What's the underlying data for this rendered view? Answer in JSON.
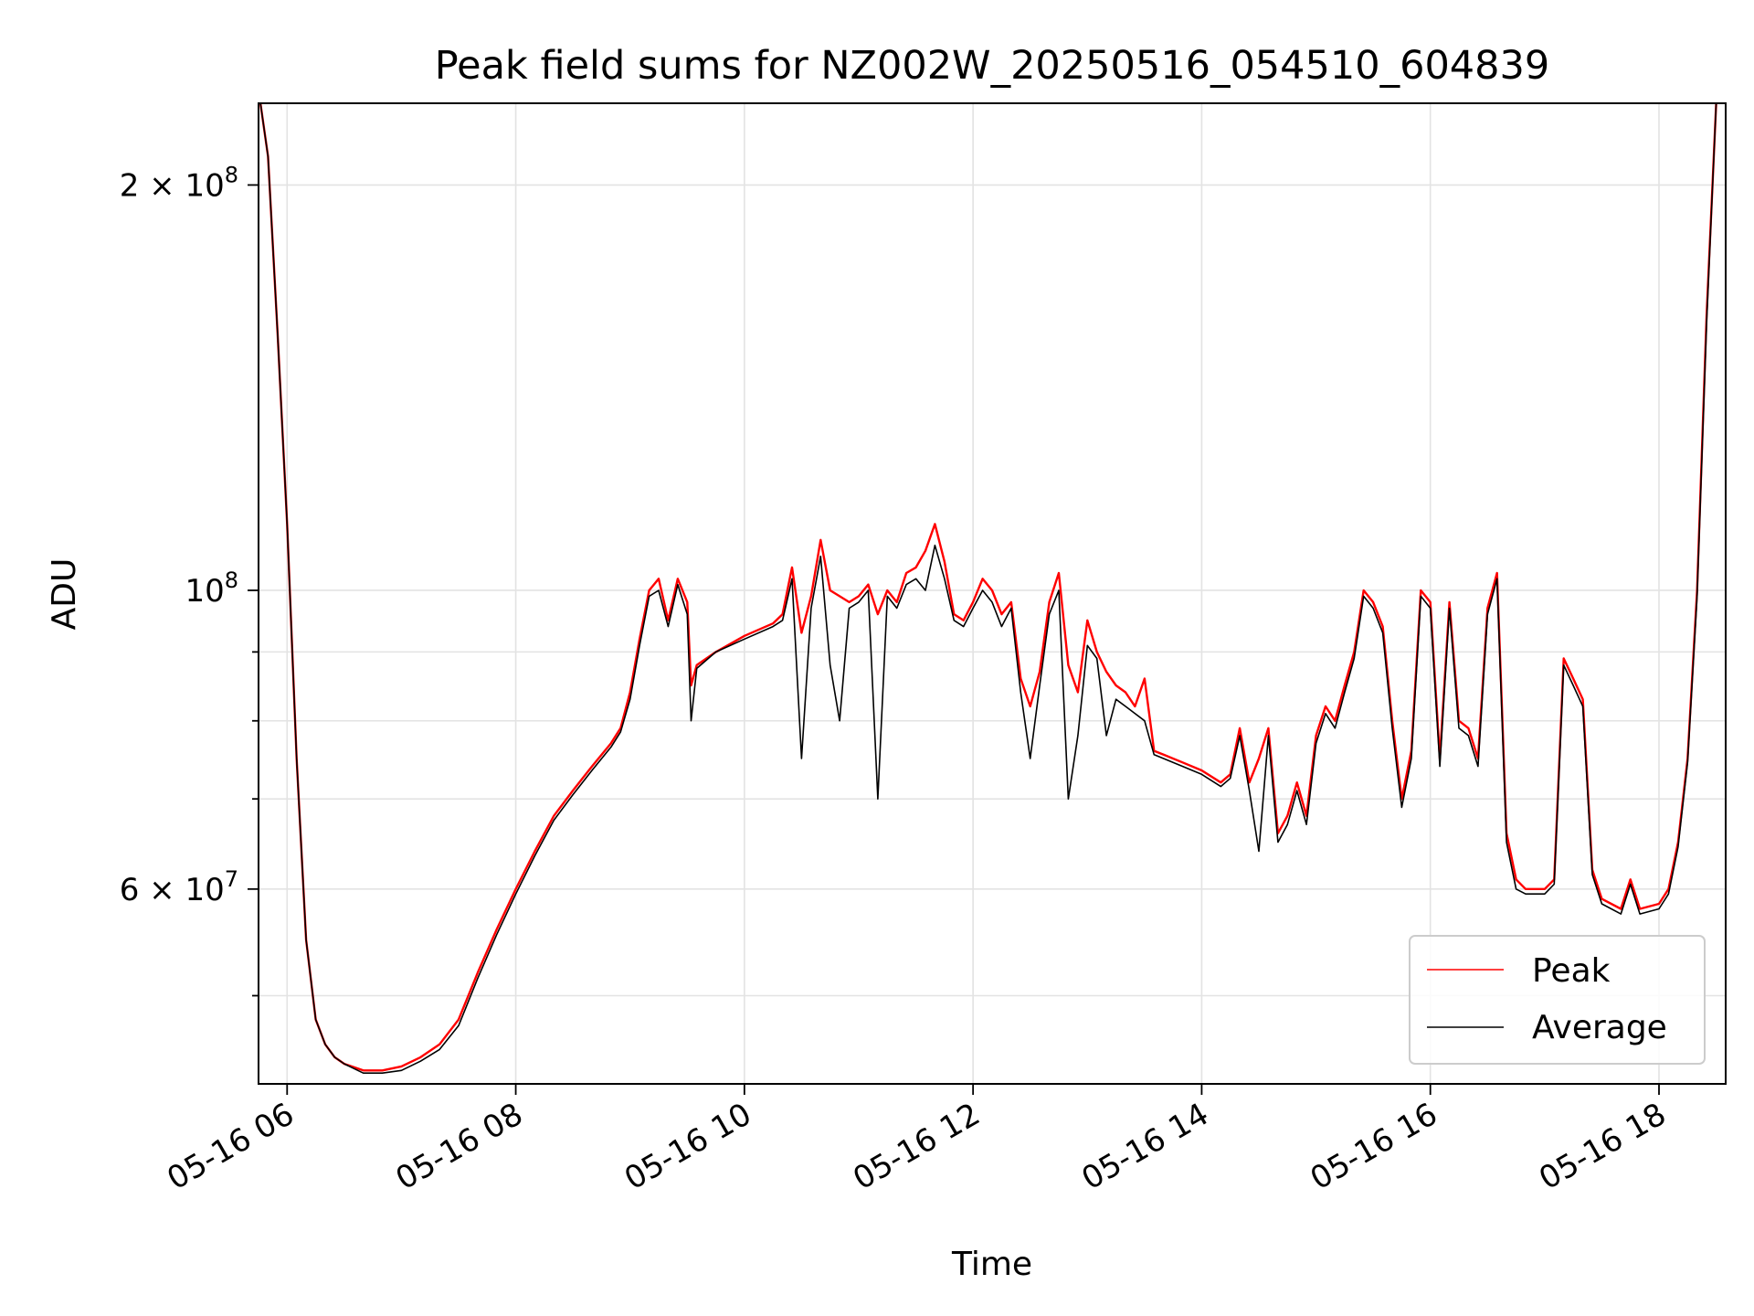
{
  "chart_data": {
    "type": "line",
    "title": "Peak field sums for NZ002W_20250516_054510_604839",
    "xlabel": "Time",
    "ylabel": "ADU",
    "yscale": "log",
    "grid": true,
    "legend_position": "bottom-right",
    "xlim": [
      "2025-05-16 05:45",
      "2025-05-16 18:35"
    ],
    "ylim": [
      43000000,
      230000000
    ],
    "x_ticks": [
      {
        "value": "2025-05-16 06:00",
        "label": "05-16 06"
      },
      {
        "value": "2025-05-16 08:00",
        "label": "05-16 08"
      },
      {
        "value": "2025-05-16 10:00",
        "label": "05-16 10"
      },
      {
        "value": "2025-05-16 12:00",
        "label": "05-16 12"
      },
      {
        "value": "2025-05-16 14:00",
        "label": "05-16 14"
      },
      {
        "value": "2025-05-16 16:00",
        "label": "05-16 16"
      },
      {
        "value": "2025-05-16 18:00",
        "label": "05-16 18"
      }
    ],
    "y_ticks": [
      {
        "value": 60000000,
        "label_base": "6 × 10",
        "label_exp": "7"
      },
      {
        "value": 100000000,
        "label_base": "10",
        "label_exp": "8"
      },
      {
        "value": 200000000,
        "label_base": "2 × 10",
        "label_exp": "8"
      }
    ],
    "y_minor_ticks": [
      50000000,
      70000000,
      80000000,
      90000000
    ],
    "series": [
      {
        "name": "Peak",
        "color": "#ff0000",
        "x": [
          "05:46",
          "05:50",
          "05:55",
          "06:00",
          "06:05",
          "06:10",
          "06:15",
          "06:20",
          "06:25",
          "06:30",
          "06:40",
          "06:50",
          "07:00",
          "07:10",
          "07:20",
          "07:30",
          "07:40",
          "07:50",
          "08:00",
          "08:10",
          "08:20",
          "08:30",
          "08:40",
          "08:50",
          "08:55",
          "09:00",
          "09:05",
          "09:10",
          "09:15",
          "09:20",
          "09:25",
          "09:30",
          "09:32",
          "09:35",
          "09:45",
          "10:00",
          "10:15",
          "10:20",
          "10:25",
          "10:30",
          "10:35",
          "10:40",
          "10:45",
          "10:50",
          "10:55",
          "11:00",
          "11:05",
          "11:10",
          "11:15",
          "11:20",
          "11:25",
          "11:30",
          "11:35",
          "11:40",
          "11:45",
          "11:50",
          "11:55",
          "12:00",
          "12:05",
          "12:10",
          "12:15",
          "12:20",
          "12:25",
          "12:30",
          "12:35",
          "12:40",
          "12:45",
          "12:50",
          "12:55",
          "13:00",
          "13:05",
          "13:10",
          "13:15",
          "13:20",
          "13:25",
          "13:30",
          "13:35",
          "13:40",
          "13:50",
          "14:00",
          "14:10",
          "14:15",
          "14:20",
          "14:25",
          "14:30",
          "14:35",
          "14:40",
          "14:45",
          "14:50",
          "14:55",
          "15:00",
          "15:05",
          "15:10",
          "15:15",
          "15:20",
          "15:25",
          "15:30",
          "15:35",
          "15:40",
          "15:45",
          "15:50",
          "15:55",
          "16:00",
          "16:05",
          "16:10",
          "16:15",
          "16:20",
          "16:25",
          "16:30",
          "16:35",
          "16:40",
          "16:45",
          "16:50",
          "17:00",
          "17:05",
          "17:10",
          "17:15",
          "17:20",
          "17:25",
          "17:30",
          "17:40",
          "17:45",
          "17:50",
          "18:00",
          "18:05",
          "18:10",
          "18:15",
          "18:20",
          "18:25",
          "18:30"
        ],
        "values": [
          230000000,
          210000000,
          155000000,
          112000000,
          75000000,
          55000000,
          48000000,
          46000000,
          45000000,
          44500000,
          44000000,
          44000000,
          44300000,
          45000000,
          46000000,
          48000000,
          52000000,
          56000000,
          60000000,
          64000000,
          68000000,
          71000000,
          74000000,
          77000000,
          79000000,
          84000000,
          92000000,
          100000000,
          102000000,
          95000000,
          102000000,
          98000000,
          85000000,
          88000000,
          90000000,
          92500000,
          94500000,
          96000000,
          104000000,
          93000000,
          99000000,
          109000000,
          100000000,
          99000000,
          98000000,
          99000000,
          101000000,
          96000000,
          100000000,
          98000000,
          103000000,
          104000000,
          107000000,
          112000000,
          105000000,
          96000000,
          95000000,
          98000000,
          102000000,
          100000000,
          96000000,
          98000000,
          86000000,
          82000000,
          87000000,
          98000000,
          103000000,
          88000000,
          84000000,
          95000000,
          90000000,
          87000000,
          85000000,
          84000000,
          82000000,
          86000000,
          76000000,
          75500000,
          74500000,
          73500000,
          72000000,
          73000000,
          79000000,
          72000000,
          75000000,
          79000000,
          66000000,
          68000000,
          72000000,
          68000000,
          78000000,
          82000000,
          80000000,
          85000000,
          90000000,
          100000000,
          98000000,
          94000000,
          80000000,
          70000000,
          76000000,
          100000000,
          98000000,
          75000000,
          98000000,
          80000000,
          79000000,
          75000000,
          97000000,
          103000000,
          66000000,
          61000000,
          60000000,
          60000000,
          61000000,
          89000000,
          86000000,
          83000000,
          62000000,
          59000000,
          58000000,
          61000000,
          58000000,
          58500000,
          60000000,
          65000000,
          75000000,
          100000000,
          160000000,
          230000000
        ]
      },
      {
        "name": "Average",
        "color": "#000000",
        "x": [
          "05:46",
          "05:50",
          "05:55",
          "06:00",
          "06:05",
          "06:10",
          "06:15",
          "06:20",
          "06:25",
          "06:30",
          "06:40",
          "06:50",
          "07:00",
          "07:10",
          "07:20",
          "07:30",
          "07:40",
          "07:50",
          "08:00",
          "08:10",
          "08:20",
          "08:30",
          "08:40",
          "08:50",
          "08:55",
          "09:00",
          "09:05",
          "09:10",
          "09:15",
          "09:20",
          "09:25",
          "09:30",
          "09:32",
          "09:35",
          "09:45",
          "10:00",
          "10:15",
          "10:20",
          "10:25",
          "10:30",
          "10:35",
          "10:40",
          "10:45",
          "10:50",
          "10:55",
          "11:00",
          "11:05",
          "11:10",
          "11:15",
          "11:20",
          "11:25",
          "11:30",
          "11:35",
          "11:40",
          "11:45",
          "11:50",
          "11:55",
          "12:00",
          "12:05",
          "12:10",
          "12:15",
          "12:20",
          "12:25",
          "12:30",
          "12:35",
          "12:40",
          "12:45",
          "12:50",
          "12:55",
          "13:00",
          "13:05",
          "13:10",
          "13:15",
          "13:20",
          "13:25",
          "13:30",
          "13:35",
          "13:40",
          "13:50",
          "14:00",
          "14:10",
          "14:15",
          "14:20",
          "14:25",
          "14:30",
          "14:35",
          "14:40",
          "14:45",
          "14:50",
          "14:55",
          "15:00",
          "15:05",
          "15:10",
          "15:15",
          "15:20",
          "15:25",
          "15:30",
          "15:35",
          "15:40",
          "15:45",
          "15:50",
          "15:55",
          "16:00",
          "16:05",
          "16:10",
          "16:15",
          "16:20",
          "16:25",
          "16:30",
          "16:35",
          "16:40",
          "16:45",
          "16:50",
          "17:00",
          "17:05",
          "17:10",
          "17:15",
          "17:20",
          "17:25",
          "17:30",
          "17:40",
          "17:45",
          "17:50",
          "18:00",
          "18:05",
          "18:10",
          "18:15",
          "18:20",
          "18:25",
          "18:30"
        ],
        "values": [
          230000000,
          210000000,
          155000000,
          112000000,
          75000000,
          55000000,
          48000000,
          46000000,
          45000000,
          44500000,
          43800000,
          43800000,
          44000000,
          44700000,
          45600000,
          47500000,
          51500000,
          55500000,
          59500000,
          63500000,
          67500000,
          70500000,
          73500000,
          76500000,
          78500000,
          83000000,
          91000000,
          99000000,
          100000000,
          94000000,
          101000000,
          96000000,
          80000000,
          87500000,
          90000000,
          92000000,
          94000000,
          95000000,
          102000000,
          75000000,
          97000000,
          106000000,
          88000000,
          80000000,
          97000000,
          98000000,
          100000000,
          70000000,
          99000000,
          97000000,
          101000000,
          102000000,
          100000000,
          108000000,
          102000000,
          95000000,
          94000000,
          97000000,
          100000000,
          98000000,
          94000000,
          97000000,
          84000000,
          75000000,
          85000000,
          96000000,
          100000000,
          70000000,
          78000000,
          91000000,
          89000000,
          78000000,
          83000000,
          82000000,
          81000000,
          80000000,
          75500000,
          75000000,
          74000000,
          73000000,
          71500000,
          72500000,
          78000000,
          71000000,
          64000000,
          78000000,
          65000000,
          67000000,
          71000000,
          67000000,
          77000000,
          81000000,
          79000000,
          84000000,
          89000000,
          99000000,
          97000000,
          93000000,
          79000000,
          69000000,
          75000000,
          99000000,
          97000000,
          74000000,
          97000000,
          79000000,
          78000000,
          74000000,
          96000000,
          102000000,
          65000000,
          60000000,
          59500000,
          59500000,
          60500000,
          88000000,
          85000000,
          82000000,
          61500000,
          58500000,
          57500000,
          60500000,
          57500000,
          58000000,
          59500000,
          64500000,
          74500000,
          99000000,
          158000000,
          230000000
        ]
      }
    ]
  }
}
